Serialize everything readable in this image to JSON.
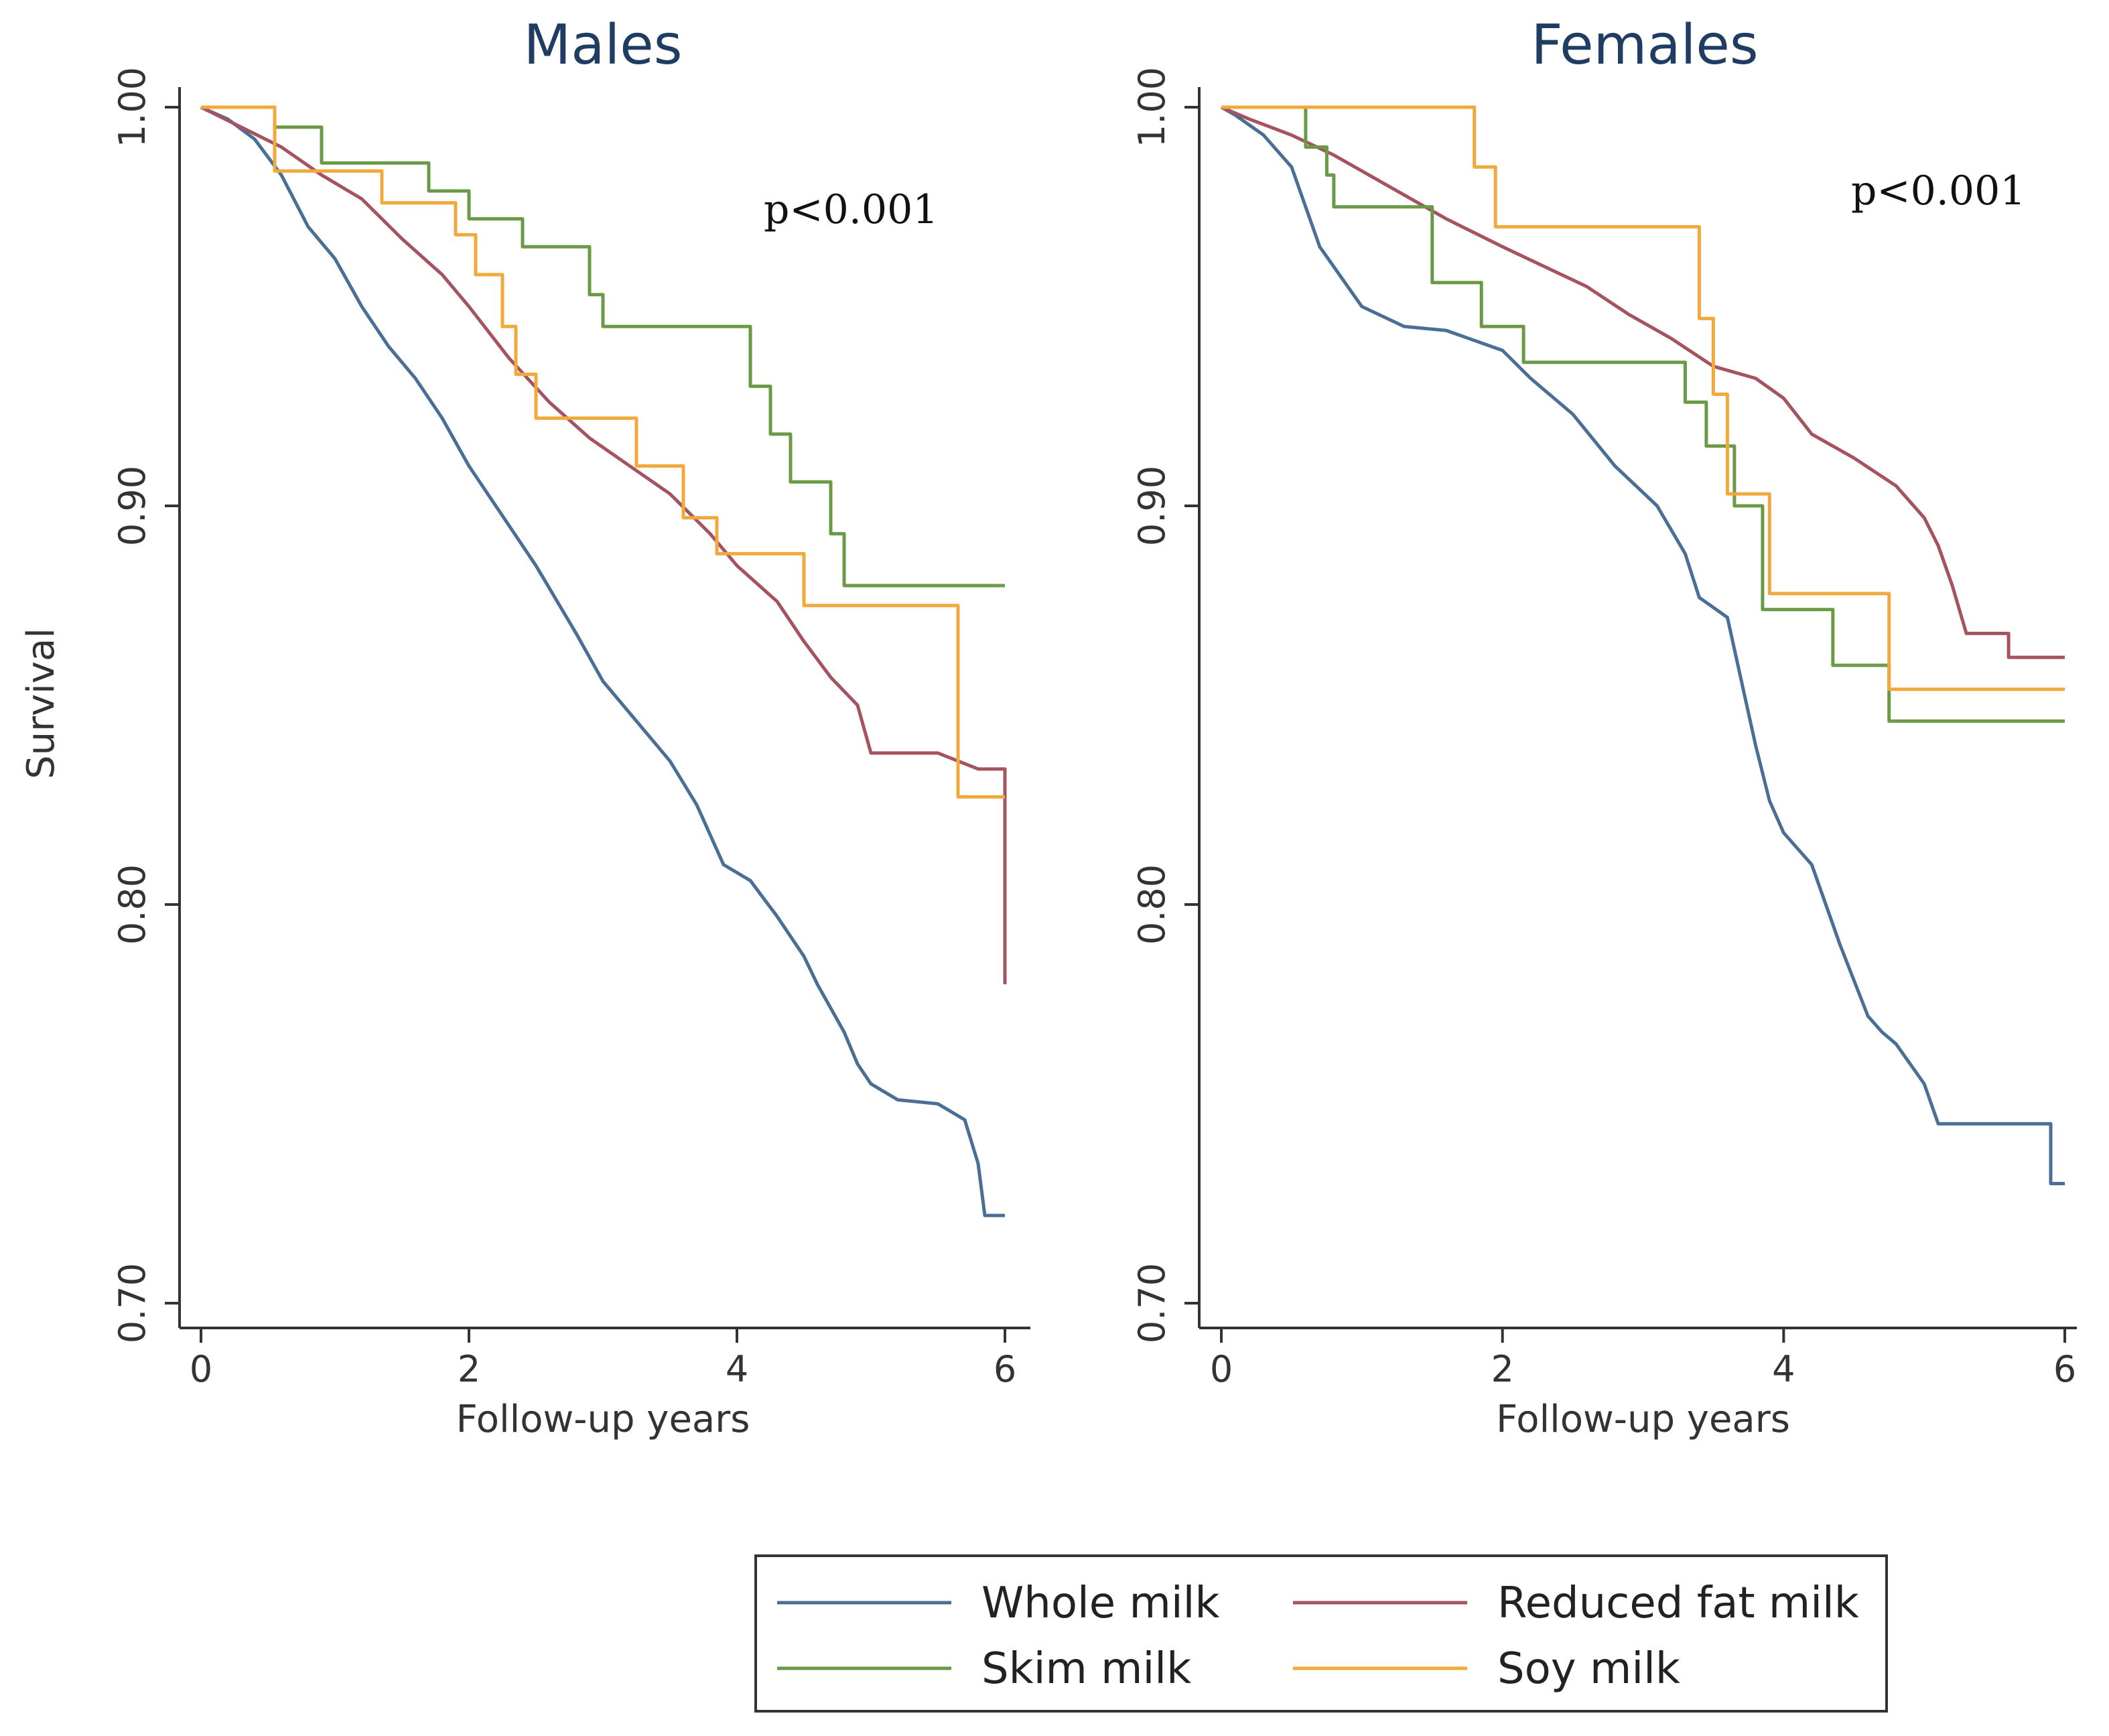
{
  "chart_data": [
    {
      "type": "line",
      "title": "Males",
      "xlabel": "Follow-up years",
      "ylabel": "Survival",
      "xlim": [
        0,
        6
      ],
      "ylim": [
        0.7,
        1.0
      ],
      "xticks": [
        "0",
        "2",
        "4",
        "6"
      ],
      "yticks": [
        "0.70",
        "0.80",
        "0.90",
        "1.00"
      ],
      "annotation": "p<0.001",
      "series": [
        {
          "name": "Whole milk",
          "color": "#4a6f97",
          "points": [
            [
              0,
              1.0
            ],
            [
              0.2,
              0.997
            ],
            [
              0.4,
              0.992
            ],
            [
              0.6,
              0.983
            ],
            [
              0.8,
              0.97
            ],
            [
              1.0,
              0.962
            ],
            [
              1.2,
              0.95
            ],
            [
              1.4,
              0.94
            ],
            [
              1.6,
              0.932
            ],
            [
              1.8,
              0.922
            ],
            [
              2.0,
              0.91
            ],
            [
              2.2,
              0.9
            ],
            [
              2.5,
              0.885
            ],
            [
              2.8,
              0.868
            ],
            [
              3.0,
              0.856
            ],
            [
              3.2,
              0.848
            ],
            [
              3.5,
              0.836
            ],
            [
              3.7,
              0.825
            ],
            [
              3.9,
              0.81
            ],
            [
              4.1,
              0.806
            ],
            [
              4.3,
              0.797
            ],
            [
              4.5,
              0.787
            ],
            [
              4.6,
              0.78
            ],
            [
              4.8,
              0.768
            ],
            [
              4.9,
              0.76
            ],
            [
              5.0,
              0.755
            ],
            [
              5.2,
              0.751
            ],
            [
              5.5,
              0.75
            ],
            [
              5.7,
              0.746
            ],
            [
              5.8,
              0.735
            ],
            [
              5.85,
              0.722
            ],
            [
              6.0,
              0.722
            ]
          ]
        },
        {
          "name": "Reduced fat milk",
          "color": "#a5535f",
          "points": [
            [
              0,
              1.0
            ],
            [
              0.3,
              0.995
            ],
            [
              0.6,
              0.99
            ],
            [
              0.9,
              0.983
            ],
            [
              1.2,
              0.977
            ],
            [
              1.5,
              0.967
            ],
            [
              1.8,
              0.958
            ],
            [
              2.0,
              0.95
            ],
            [
              2.3,
              0.937
            ],
            [
              2.6,
              0.926
            ],
            [
              2.9,
              0.917
            ],
            [
              3.2,
              0.91
            ],
            [
              3.5,
              0.903
            ],
            [
              3.8,
              0.893
            ],
            [
              4.0,
              0.885
            ],
            [
              4.3,
              0.876
            ],
            [
              4.5,
              0.866
            ],
            [
              4.7,
              0.857
            ],
            [
              4.9,
              0.85
            ],
            [
              5.0,
              0.838
            ],
            [
              5.5,
              0.838
            ],
            [
              5.8,
              0.834
            ],
            [
              6.0,
              0.834
            ],
            [
              6.0,
              0.78
            ]
          ]
        },
        {
          "name": "Skim milk",
          "color": "#6b9a47",
          "points": [
            [
              0,
              1.0
            ],
            [
              0.55,
              1.0
            ],
            [
              0.55,
              0.995
            ],
            [
              0.9,
              0.995
            ],
            [
              0.9,
              0.986
            ],
            [
              1.7,
              0.986
            ],
            [
              1.7,
              0.979
            ],
            [
              2.0,
              0.979
            ],
            [
              2.0,
              0.972
            ],
            [
              2.4,
              0.972
            ],
            [
              2.4,
              0.965
            ],
            [
              2.9,
              0.965
            ],
            [
              2.9,
              0.953
            ],
            [
              3.0,
              0.953
            ],
            [
              3.0,
              0.945
            ],
            [
              4.1,
              0.945
            ],
            [
              4.1,
              0.93
            ],
            [
              4.25,
              0.93
            ],
            [
              4.25,
              0.918
            ],
            [
              4.4,
              0.918
            ],
            [
              4.4,
              0.906
            ],
            [
              4.7,
              0.906
            ],
            [
              4.7,
              0.893
            ],
            [
              4.8,
              0.893
            ],
            [
              4.8,
              0.88
            ],
            [
              6.0,
              0.88
            ]
          ]
        },
        {
          "name": "Soy milk",
          "color": "#f0a93a",
          "points": [
            [
              0,
              1.0
            ],
            [
              0.55,
              1.0
            ],
            [
              0.55,
              0.984
            ],
            [
              1.35,
              0.984
            ],
            [
              1.35,
              0.976
            ],
            [
              1.9,
              0.976
            ],
            [
              1.9,
              0.968
            ],
            [
              2.05,
              0.968
            ],
            [
              2.05,
              0.958
            ],
            [
              2.25,
              0.958
            ],
            [
              2.25,
              0.945
            ],
            [
              2.35,
              0.945
            ],
            [
              2.35,
              0.933
            ],
            [
              2.5,
              0.933
            ],
            [
              2.5,
              0.922
            ],
            [
              3.25,
              0.922
            ],
            [
              3.25,
              0.91
            ],
            [
              3.6,
              0.91
            ],
            [
              3.6,
              0.897
            ],
            [
              3.85,
              0.897
            ],
            [
              3.85,
              0.888
            ],
            [
              4.5,
              0.888
            ],
            [
              4.5,
              0.875
            ],
            [
              5.65,
              0.875
            ],
            [
              5.65,
              0.827
            ],
            [
              6.0,
              0.827
            ]
          ]
        }
      ]
    },
    {
      "type": "line",
      "title": "Females",
      "xlabel": "Follow-up years",
      "ylabel": "",
      "xlim": [
        0,
        6
      ],
      "ylim": [
        0.7,
        1.0
      ],
      "xticks": [
        "0",
        "2",
        "4",
        "6"
      ],
      "yticks": [
        "0.70",
        "0.80",
        "0.90",
        "1.00"
      ],
      "annotation": "p<0.001",
      "series": [
        {
          "name": "Whole milk",
          "color": "#4a6f97",
          "points": [
            [
              0,
              1.0
            ],
            [
              0.1,
              0.998
            ],
            [
              0.3,
              0.993
            ],
            [
              0.5,
              0.985
            ],
            [
              0.6,
              0.975
            ],
            [
              0.7,
              0.965
            ],
            [
              0.9,
              0.955
            ],
            [
              1.0,
              0.95
            ],
            [
              1.3,
              0.945
            ],
            [
              1.6,
              0.944
            ],
            [
              2.0,
              0.939
            ],
            [
              2.2,
              0.932
            ],
            [
              2.5,
              0.923
            ],
            [
              2.8,
              0.91
            ],
            [
              3.1,
              0.9
            ],
            [
              3.3,
              0.888
            ],
            [
              3.4,
              0.877
            ],
            [
              3.6,
              0.872
            ],
            [
              3.7,
              0.856
            ],
            [
              3.8,
              0.84
            ],
            [
              3.9,
              0.826
            ],
            [
              4.0,
              0.818
            ],
            [
              4.2,
              0.81
            ],
            [
              4.3,
              0.8
            ],
            [
              4.4,
              0.79
            ],
            [
              4.6,
              0.772
            ],
            [
              4.7,
              0.768
            ],
            [
              4.8,
              0.765
            ],
            [
              5.0,
              0.755
            ],
            [
              5.1,
              0.745
            ],
            [
              5.9,
              0.745
            ],
            [
              5.9,
              0.73
            ],
            [
              6.0,
              0.73
            ]
          ]
        },
        {
          "name": "Reduced fat milk",
          "color": "#a5535f",
          "points": [
            [
              0,
              1.0
            ],
            [
              0.2,
              0.997
            ],
            [
              0.5,
              0.993
            ],
            [
              0.8,
              0.988
            ],
            [
              1.0,
              0.984
            ],
            [
              1.3,
              0.978
            ],
            [
              1.6,
              0.972
            ],
            [
              2.0,
              0.965
            ],
            [
              2.3,
              0.96
            ],
            [
              2.6,
              0.955
            ],
            [
              2.9,
              0.948
            ],
            [
              3.2,
              0.942
            ],
            [
              3.5,
              0.935
            ],
            [
              3.8,
              0.932
            ],
            [
              4.0,
              0.927
            ],
            [
              4.2,
              0.918
            ],
            [
              4.5,
              0.912
            ],
            [
              4.8,
              0.905
            ],
            [
              5.0,
              0.897
            ],
            [
              5.1,
              0.89
            ],
            [
              5.2,
              0.88
            ],
            [
              5.3,
              0.868
            ],
            [
              5.6,
              0.868
            ],
            [
              5.6,
              0.862
            ],
            [
              6.0,
              0.862
            ]
          ]
        },
        {
          "name": "Skim milk",
          "color": "#6b9a47",
          "points": [
            [
              0,
              1.0
            ],
            [
              0.6,
              1.0
            ],
            [
              0.6,
              0.99
            ],
            [
              0.75,
              0.99
            ],
            [
              0.75,
              0.983
            ],
            [
              0.8,
              0.983
            ],
            [
              0.8,
              0.975
            ],
            [
              1.5,
              0.975
            ],
            [
              1.5,
              0.956
            ],
            [
              1.85,
              0.956
            ],
            [
              1.85,
              0.945
            ],
            [
              2.15,
              0.945
            ],
            [
              2.15,
              0.936
            ],
            [
              3.3,
              0.936
            ],
            [
              3.3,
              0.926
            ],
            [
              3.45,
              0.926
            ],
            [
              3.45,
              0.915
            ],
            [
              3.65,
              0.915
            ],
            [
              3.65,
              0.9
            ],
            [
              3.85,
              0.9
            ],
            [
              3.85,
              0.874
            ],
            [
              4.35,
              0.874
            ],
            [
              4.35,
              0.86
            ],
            [
              4.75,
              0.86
            ],
            [
              4.75,
              0.846
            ],
            [
              6.0,
              0.846
            ]
          ]
        },
        {
          "name": "Soy milk",
          "color": "#f0a93a",
          "points": [
            [
              0,
              1.0
            ],
            [
              1.8,
              1.0
            ],
            [
              1.8,
              0.985
            ],
            [
              1.95,
              0.985
            ],
            [
              1.95,
              0.97
            ],
            [
              3.4,
              0.97
            ],
            [
              3.4,
              0.947
            ],
            [
              3.5,
              0.947
            ],
            [
              3.5,
              0.928
            ],
            [
              3.6,
              0.928
            ],
            [
              3.6,
              0.903
            ],
            [
              3.9,
              0.903
            ],
            [
              3.9,
              0.878
            ],
            [
              4.75,
              0.878
            ],
            [
              4.75,
              0.854
            ],
            [
              6.0,
              0.854
            ]
          ]
        }
      ]
    }
  ],
  "legend": {
    "items": [
      {
        "label": "Whole milk",
        "color": "#4a6f97"
      },
      {
        "label": "Reduced fat milk",
        "color": "#a5535f"
      },
      {
        "label": "Skim milk",
        "color": "#6b9a47"
      },
      {
        "label": "Soy milk",
        "color": "#f0a93a"
      }
    ]
  }
}
